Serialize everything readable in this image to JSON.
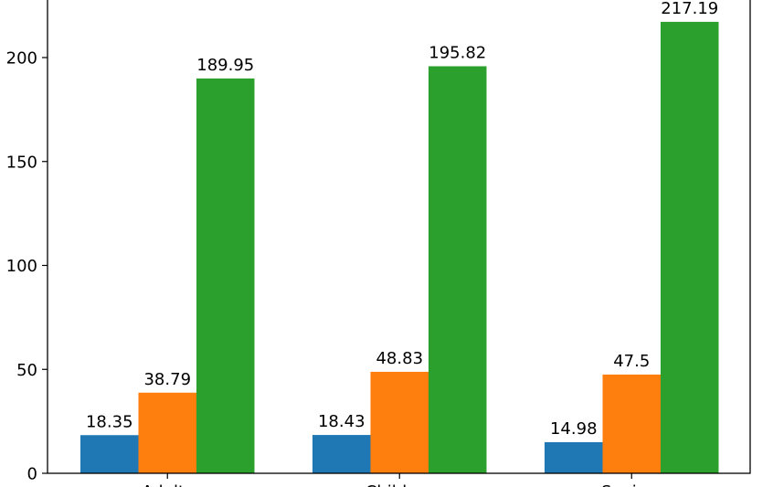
{
  "chart_data": {
    "type": "bar",
    "categories": [
      "Adults",
      "Children",
      "Seniors"
    ],
    "series": [
      {
        "values": [
          18.35,
          18.43,
          14.98
        ],
        "color": "#1f77b4"
      },
      {
        "values": [
          38.79,
          48.83,
          47.5
        ],
        "color": "#ff7f0e"
      },
      {
        "values": [
          189.95,
          195.82,
          217.19
        ],
        "color": "#2ca02c"
      }
    ],
    "data_labels": [
      [
        "18.35",
        "18.43",
        "14.98"
      ],
      [
        "38.79",
        "48.83",
        "47.5"
      ],
      [
        "189.95",
        "195.82",
        "217.19"
      ]
    ],
    "y_ticks": [
      0,
      50,
      100,
      150,
      200
    ],
    "y_tick_labels": [
      "0",
      "50",
      "100",
      "150",
      "200"
    ],
    "ylim": [
      0,
      228
    ],
    "grid": false,
    "legend": "none"
  }
}
